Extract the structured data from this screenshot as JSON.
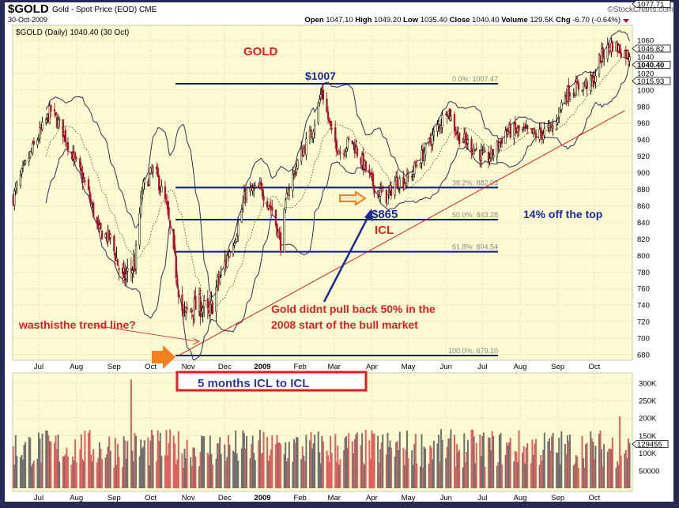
{
  "header": {
    "symbol": "$GOLD",
    "name": "Gold - Spot Price (EOD) CME",
    "watermark": "©StockCharts.com",
    "date": "30-Oct-2009",
    "open_label": "Open",
    "open": "1047.10",
    "high_label": "High",
    "high": "1049.20",
    "low_label": "Low",
    "low": "1035.40",
    "close_label": "Close",
    "close": "1040.40",
    "volume_label": "Volume",
    "volume": "129.5K",
    "chg_label": "Chg",
    "chg": "-6.70 (-0.64%)"
  },
  "legend": "$GOLD (Daily) 1040.40 (30 Oct)",
  "price_tags": {
    "upper_band": "1077.71",
    "sma": "1046.82",
    "last": "1040.40",
    "lower_band": "1015.93"
  },
  "volume_tag": "129455",
  "annotations": {
    "title": "GOLD",
    "top": "$1007",
    "low_price": "$865",
    "icl": "ICL",
    "off_top": "14% off the top",
    "pullback_line1": "Gold didnt pull back 50% in the",
    "pullback_line2": "2008 start of the bull market",
    "trend_question": "wasthisthe trend line?",
    "cycle_box": "5 months ICL to ICL"
  },
  "colors": {
    "background": "#fdfbd2",
    "up": "#000000",
    "down": "#b0102a",
    "fib": "#0d1a80",
    "trend": "#d02020",
    "annotation_blue": "#1a2a9a",
    "annotation_red": "#e02020",
    "arrow": "#f08020",
    "volume_up": "#707070",
    "volume_down": "#e06060"
  },
  "chart_data": [
    {
      "type": "candlestick",
      "title": "$GOLD (Daily)",
      "y_ticks": [
        680,
        700,
        720,
        740,
        760,
        780,
        800,
        820,
        840,
        860,
        880,
        900,
        920,
        940,
        960,
        980,
        1000,
        1020,
        1040,
        1060
      ],
      "ylim": [
        672,
        1080
      ],
      "x_tick_labels": [
        "Jul",
        "Aug",
        "Sep",
        "Oct",
        "Nov",
        "Dec",
        "2009",
        "Feb",
        "Mar",
        "Apr",
        "May",
        "Jun",
        "Jul",
        "Aug",
        "Sep",
        "Oct"
      ],
      "x_tick_dates": [
        "2008-07-01",
        "2008-08-01",
        "2008-09-01",
        "2008-10-01",
        "2008-11-01",
        "2008-12-01",
        "2009-01-01",
        "2009-02-01",
        "2009-03-01",
        "2009-04-01",
        "2009-05-01",
        "2009-06-01",
        "2009-07-01",
        "2009-08-01",
        "2009-09-01",
        "2009-10-01"
      ],
      "approx_close": [
        [
          "2008-06-10",
          870
        ],
        [
          "2008-06-19",
          905
        ],
        [
          "2008-06-28",
          935
        ],
        [
          "2008-07-11",
          975
        ],
        [
          "2008-07-21",
          950
        ],
        [
          "2008-08-01",
          910
        ],
        [
          "2008-08-10",
          880
        ],
        [
          "2008-08-19",
          830
        ],
        [
          "2008-08-29",
          820
        ],
        [
          "2008-09-08",
          770
        ],
        [
          "2008-09-18",
          790
        ],
        [
          "2008-09-24",
          880
        ],
        [
          "2008-10-04",
          905
        ],
        [
          "2008-10-14",
          860
        ],
        [
          "2008-10-20",
          800
        ],
        [
          "2008-10-28",
          725
        ],
        [
          "2008-11-02",
          735
        ],
        [
          "2008-11-12",
          740
        ],
        [
          "2008-11-18",
          725
        ],
        [
          "2008-11-25",
          765
        ],
        [
          "2008-12-01",
          790
        ],
        [
          "2008-12-11",
          830
        ],
        [
          "2008-12-18",
          875
        ],
        [
          "2008-12-31",
          880
        ],
        [
          "2009-01-09",
          855
        ],
        [
          "2009-01-16",
          815
        ],
        [
          "2009-01-22",
          880
        ],
        [
          "2009-02-01",
          920
        ],
        [
          "2009-02-11",
          950
        ],
        [
          "2009-02-19",
          1000
        ],
        [
          "2009-02-27",
          945
        ],
        [
          "2009-03-06",
          925
        ],
        [
          "2009-03-15",
          940
        ],
        [
          "2009-03-25",
          910
        ],
        [
          "2009-04-04",
          880
        ],
        [
          "2009-04-14",
          870
        ],
        [
          "2009-04-20",
          890
        ],
        [
          "2009-04-30",
          890
        ],
        [
          "2009-05-10",
          915
        ],
        [
          "2009-05-20",
          940
        ],
        [
          "2009-05-29",
          965
        ],
        [
          "2009-06-01",
          980
        ],
        [
          "2009-06-11",
          945
        ],
        [
          "2009-06-24",
          930
        ],
        [
          "2009-07-04",
          915
        ],
        [
          "2009-07-11",
          925
        ],
        [
          "2009-07-20",
          950
        ],
        [
          "2009-08-02",
          950
        ],
        [
          "2009-08-15",
          945
        ],
        [
          "2009-08-28",
          955
        ],
        [
          "2009-09-07",
          995
        ],
        [
          "2009-09-20",
          1005
        ],
        [
          "2009-09-30",
          1010
        ],
        [
          "2009-10-06",
          1040
        ],
        [
          "2009-10-16",
          1055
        ],
        [
          "2009-10-26",
          1045
        ],
        [
          "2009-10-30",
          1040.4
        ]
      ],
      "overlays": [
        "Bollinger Bands (20,2)",
        "SMA 20"
      ],
      "fibonacci": [
        {
          "label": "0.0%: 1007.47",
          "value": 1007.47
        },
        {
          "label": "38.2%: 882.03",
          "value": 882.03
        },
        {
          "label": "50.0%: 843.28",
          "value": 843.28
        },
        {
          "label": "61.8%: 804.54",
          "value": 804.54
        },
        {
          "label": "100.0%: 679.10",
          "value": 679.1
        }
      ],
      "trend_line": [
        [
          "2008-10-24",
          679
        ],
        [
          "2009-10-26",
          975
        ]
      ],
      "grid": true
    },
    {
      "type": "bar",
      "title": "Volume",
      "y_ticks": [
        50000,
        100000,
        150000,
        200000,
        250000,
        300000
      ],
      "y_tick_labels": [
        "50000",
        "100K",
        "150K",
        "200K",
        "250K",
        "300K"
      ],
      "ylim": [
        0,
        320000
      ],
      "typical_volume": 130000,
      "notable": [
        [
          "2008-09-15",
          310000
        ],
        [
          "2009-10-22",
          205000
        ],
        [
          "2009-10-30",
          129455
        ]
      ]
    }
  ]
}
